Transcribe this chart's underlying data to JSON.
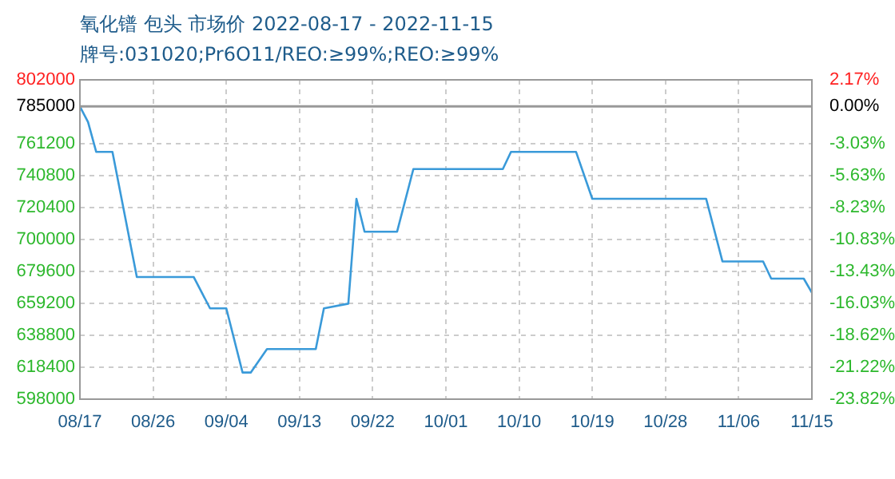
{
  "chart_data": {
    "type": "line",
    "title": "氧化镨 包头 市场价 2022-08-17 - 2022-11-15",
    "subtitle": "牌号:031020;Pr6O11/REO:≥99%;REO:≥99%",
    "series": [
      {
        "color": "#3a9ad9",
        "x": [
          "2022-08-17",
          "2022-08-18",
          "2022-08-19",
          "2022-08-21",
          "2022-08-24",
          "2022-08-31",
          "2022-09-02",
          "2022-09-04",
          "2022-09-06",
          "2022-09-07",
          "2022-09-09",
          "2022-09-15",
          "2022-09-16",
          "2022-09-19",
          "2022-09-20",
          "2022-09-21",
          "2022-09-25",
          "2022-09-27",
          "2022-10-08",
          "2022-10-09",
          "2022-10-17",
          "2022-10-19",
          "2022-11-02",
          "2022-11-04",
          "2022-11-09",
          "2022-11-10",
          "2022-11-14",
          "2022-11-15"
        ],
        "values": [
          785000,
          775000,
          756000,
          756000,
          676000,
          676000,
          656000,
          656000,
          615000,
          615000,
          630000,
          630000,
          656000,
          659000,
          726000,
          705000,
          705000,
          745000,
          745000,
          756000,
          756000,
          726000,
          726000,
          686000,
          686000,
          675000,
          675000,
          666000
        ]
      }
    ],
    "xlim": [
      "2022-08-17",
      "2022-11-15"
    ],
    "xticks": [
      {
        "value": "2022-08-17",
        "label": "08/17"
      },
      {
        "value": "2022-08-26",
        "label": "08/26"
      },
      {
        "value": "2022-09-04",
        "label": "09/04"
      },
      {
        "value": "2022-09-13",
        "label": "09/13"
      },
      {
        "value": "2022-09-22",
        "label": "09/22"
      },
      {
        "value": "2022-10-01",
        "label": "10/01"
      },
      {
        "value": "2022-10-10",
        "label": "10/10"
      },
      {
        "value": "2022-10-19",
        "label": "10/19"
      },
      {
        "value": "2022-10-28",
        "label": "10/28"
      },
      {
        "value": "2022-11-06",
        "label": "11/06"
      },
      {
        "value": "2022-11-15",
        "label": "11/15"
      }
    ],
    "ylim": [
      598000,
      802000
    ],
    "yticks": [
      598000,
      618400,
      638800,
      659200,
      679600,
      700000,
      720400,
      740800,
      761200,
      785000,
      802000
    ],
    "y2lim": [
      -23.82,
      2.17
    ],
    "y2ticks": [
      {
        "value": -23.82,
        "label": "-23.82%"
      },
      {
        "value": -21.22,
        "label": "-21.22%"
      },
      {
        "value": -18.62,
        "label": "-18.62%"
      },
      {
        "value": -16.03,
        "label": "-16.03%"
      },
      {
        "value": -13.43,
        "label": "-13.43%"
      },
      {
        "value": -10.83,
        "label": "-10.83%"
      },
      {
        "value": -8.23,
        "label": "-8.23%"
      },
      {
        "value": -5.63,
        "label": "-5.63%"
      },
      {
        "value": -3.03,
        "label": "-3.03%"
      },
      {
        "value": 0,
        "label": "0.00%"
      },
      {
        "value": 2.17,
        "label": "2.17%"
      }
    ],
    "ref_lines": [
      {
        "axis": "y",
        "value": 785000,
        "color": "#999999"
      }
    ],
    "grid": true
  }
}
